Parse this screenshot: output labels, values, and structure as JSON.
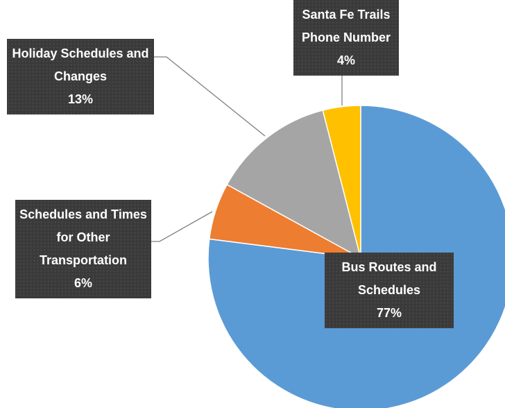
{
  "chart_data": {
    "type": "pie",
    "categories": [
      "Bus Routes and Schedules",
      "Schedules and Times for Other Transportation",
      "Holiday Schedules and Changes",
      "Santa Fe Trails Phone Number"
    ],
    "values": [
      77,
      6,
      13,
      4
    ],
    "value_labels": [
      "77%",
      "6%",
      "13%",
      "4%"
    ],
    "colors": [
      "#5b9bd5",
      "#ed7d31",
      "#a5a5a5",
      "#ffc000"
    ],
    "start_angle": 0,
    "direction": "clockwise"
  }
}
